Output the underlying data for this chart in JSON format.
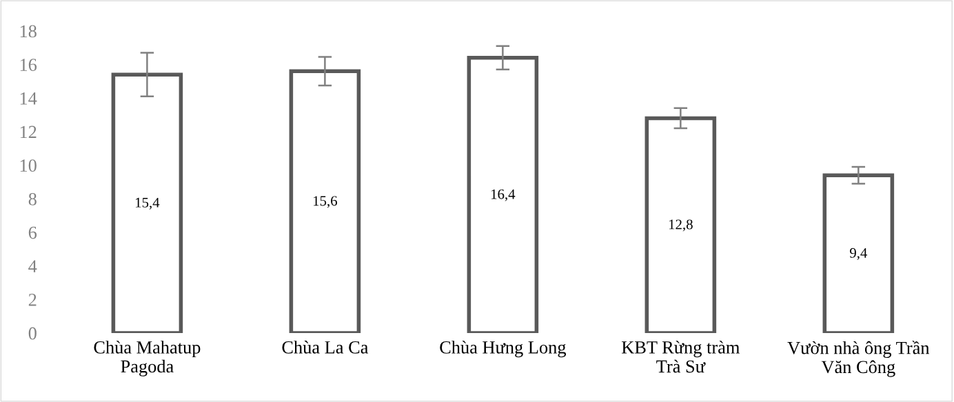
{
  "chart_data": {
    "type": "bar",
    "categories": [
      "Chùa Mahatup\nPagoda",
      "Chùa La Ca",
      "Chùa Hưng Long",
      "KBT Rừng tràm\nTrà Sư",
      "Vườn nhà ông Trần\nVăn Công"
    ],
    "values": [
      15.4,
      15.6,
      16.4,
      12.8,
      9.4
    ],
    "value_labels": [
      "15,4",
      "15,6",
      "16,4",
      "12,8",
      "9,4"
    ],
    "errors": [
      1.3,
      0.85,
      0.7,
      0.6,
      0.5
    ],
    "color": "#595959",
    "ylim": [
      0,
      18
    ],
    "yticks": [
      0,
      2,
      4,
      6,
      8,
      10,
      12,
      14,
      16,
      18
    ],
    "grid": false
  }
}
